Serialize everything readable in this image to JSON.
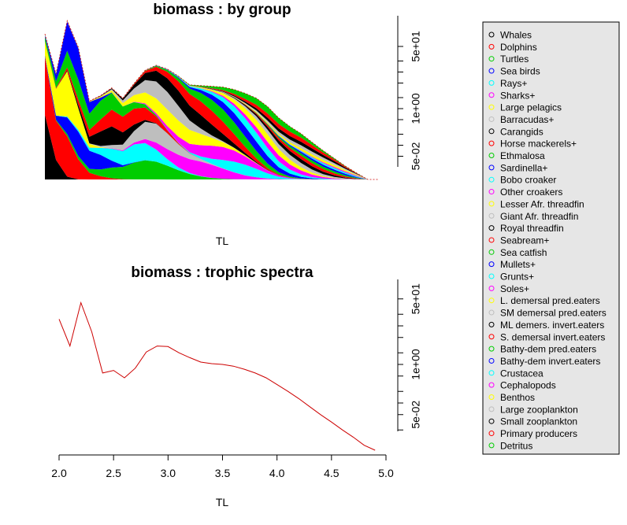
{
  "chart_data": [
    {
      "type": "area",
      "title": "biomass : by group",
      "xlabel": "TL",
      "ylabel": "",
      "x": [
        1.9,
        2.0,
        2.1,
        2.2,
        2.3,
        2.4,
        2.5,
        2.6,
        2.7,
        2.8,
        2.9,
        3.0,
        3.1,
        3.2,
        3.3,
        3.4,
        3.5,
        3.6,
        3.7,
        3.8,
        3.9,
        4.0,
        4.1,
        4.2,
        4.3,
        4.4,
        4.5,
        4.6,
        4.7,
        4.8,
        4.9
      ],
      "stack_top": [
        20,
        2.5,
        40,
        10,
        0.6,
        0.8,
        1.2,
        0.7,
        1.5,
        3,
        3.9,
        3.2,
        2.2,
        1.4,
        1.35,
        1.3,
        1.25,
        1.1,
        0.9,
        0.7,
        0.45,
        0.25,
        0.16,
        0.11,
        0.07,
        0.045,
        0.03,
        0.02,
        0.014,
        0.01,
        0.009
      ],
      "y_axis": {
        "type": "log",
        "ticks": [
          "5e-02",
          "1e+00",
          "5e+01"
        ]
      },
      "series": [
        {
          "name": "Whales",
          "color": "#000000",
          "values": [
            20,
            1.7,
            0,
            0,
            0,
            0,
            0,
            0,
            0,
            0,
            0,
            0,
            0,
            0,
            0,
            0,
            0,
            0,
            0,
            0,
            0,
            0,
            0,
            0,
            0,
            0,
            0,
            0,
            0,
            0,
            0
          ]
        },
        {
          "name": "Dolphins",
          "color": "#ff0000"
        },
        {
          "name": "Turtles",
          "color": "#00cd00"
        },
        {
          "name": "Sea birds",
          "color": "#0000ff"
        },
        {
          "name": "Rays+",
          "color": "#00ffff"
        },
        {
          "name": "Sharks+",
          "color": "#ff00ff"
        },
        {
          "name": "Large pelagics",
          "color": "#ffff00"
        },
        {
          "name": "Barracudas+",
          "color": "#bebebe"
        },
        {
          "name": "Carangids",
          "color": "#000000"
        },
        {
          "name": "Horse mackerels+",
          "color": "#ff0000"
        },
        {
          "name": "Ethmalosa",
          "color": "#00cd00"
        },
        {
          "name": "Sardinella+",
          "color": "#0000ff"
        },
        {
          "name": "Bobo croaker",
          "color": "#00ffff"
        },
        {
          "name": "Other croakers",
          "color": "#ff00ff"
        },
        {
          "name": "Lesser Afr. threadfin",
          "color": "#ffff00"
        },
        {
          "name": "Giant Afr. threadfin",
          "color": "#bebebe"
        },
        {
          "name": "Royal threadfin",
          "color": "#000000"
        },
        {
          "name": "Seabream+",
          "color": "#ff0000"
        },
        {
          "name": "Sea catfish",
          "color": "#00cd00"
        },
        {
          "name": "Mullets+",
          "color": "#0000ff"
        },
        {
          "name": "Grunts+",
          "color": "#00ffff"
        },
        {
          "name": "Soles+",
          "color": "#ff00ff"
        },
        {
          "name": "L. demersal pred.eaters",
          "color": "#ffff00"
        },
        {
          "name": "SM demersal pred.eaters",
          "color": "#bebebe"
        },
        {
          "name": "ML demers. invert.eaters",
          "color": "#000000"
        },
        {
          "name": "S. demersal invert.eaters",
          "color": "#ff0000"
        },
        {
          "name": "Bathy-dem pred.eaters",
          "color": "#00cd00"
        },
        {
          "name": "Bathy-dem invert.eaters",
          "color": "#0000ff"
        },
        {
          "name": "Crustacea",
          "color": "#00ffff"
        },
        {
          "name": "Cephalopods",
          "color": "#ff00ff"
        },
        {
          "name": "Benthos",
          "color": "#ffff00"
        },
        {
          "name": "Large zooplankton",
          "color": "#bebebe"
        },
        {
          "name": "Small zooplankton",
          "color": "#000000"
        },
        {
          "name": "Primary producers",
          "color": "#ff0000"
        },
        {
          "name": "Detritus",
          "color": "#00cd00"
        }
      ]
    },
    {
      "type": "line",
      "title": "biomass : trophic spectra",
      "xlabel": "TL",
      "ylabel": "",
      "color": "#cd0000",
      "x": [
        2.0,
        2.1,
        2.2,
        2.3,
        2.4,
        2.5,
        2.6,
        2.7,
        2.8,
        2.9,
        3.0,
        3.1,
        3.2,
        3.3,
        3.4,
        3.5,
        3.6,
        3.7,
        3.8,
        3.9,
        4.0,
        4.1,
        4.2,
        4.3,
        4.4,
        4.5,
        4.6,
        4.7,
        4.8,
        4.9
      ],
      "y": [
        15,
        3,
        40,
        7,
        0.6,
        0.7,
        0.45,
        0.8,
        2.1,
        3,
        2.9,
        2,
        1.5,
        1.15,
        1.05,
        1.0,
        0.9,
        0.75,
        0.6,
        0.45,
        0.3,
        0.2,
        0.13,
        0.08,
        0.05,
        0.032,
        0.02,
        0.013,
        0.008,
        0.005
      ],
      "xlim": [
        2.0,
        5.0
      ],
      "x_ticks": [
        "2.0",
        "2.5",
        "3.0",
        "3.5",
        "4.0",
        "4.5",
        "5.0"
      ],
      "y_axis": {
        "type": "log",
        "ticks": [
          "5e-02",
          "1e+00",
          "5e+01"
        ]
      }
    }
  ]
}
